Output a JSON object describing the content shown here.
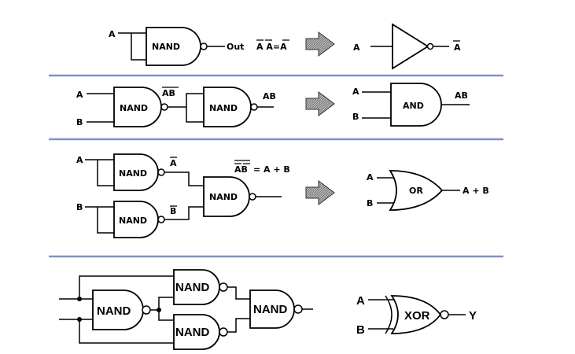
{
  "labels": {
    "a": "A",
    "b": "B",
    "out": "Out",
    "not_eq": "A A=A",
    "a_bar": "A",
    "b_bar": "B",
    "ab_bar": "AB",
    "ab": "AB",
    "or_eq_lhs": "AB",
    "or_eq_rhs": "= A + B",
    "a_plus_b": "A + B",
    "y": "Y"
  },
  "gates": {
    "nand": "NAND",
    "and": "AND",
    "or": "OR",
    "xor": "XOR"
  },
  "colors": {
    "separator": "#7f93c4",
    "arrow_fill": "#9a9a9a"
  },
  "icons": {
    "arrow": "thick-right-arrow-icon"
  }
}
